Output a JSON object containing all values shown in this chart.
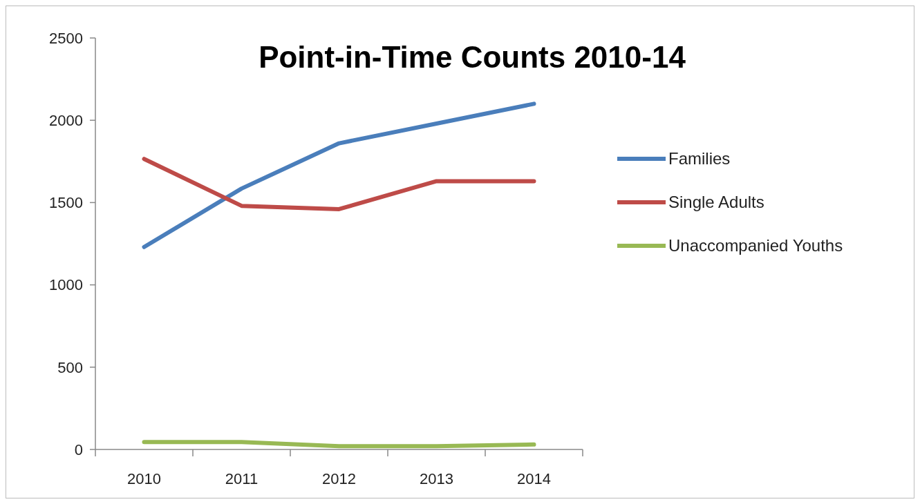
{
  "chart_data": {
    "type": "line",
    "title": "Point-in-Time Counts 2010-14",
    "categories": [
      "2010",
      "2011",
      "2012",
      "2013",
      "2014"
    ],
    "series": [
      {
        "name": "Families",
        "color": "#4a7ebb",
        "values": [
          1230,
          1585,
          1860,
          1980,
          2100
        ]
      },
      {
        "name": "Single Adults",
        "color": "#be4b48",
        "values": [
          1765,
          1480,
          1460,
          1630,
          1630
        ]
      },
      {
        "name": "Unaccompanied Youths",
        "color": "#98b954",
        "values": [
          45,
          45,
          20,
          20,
          30
        ]
      }
    ],
    "ylim": [
      0,
      2500
    ],
    "yticks": [
      0,
      500,
      1000,
      1500,
      2000,
      2500
    ],
    "grid": false,
    "legend": "right",
    "marker": "none",
    "line_style": "solid"
  }
}
